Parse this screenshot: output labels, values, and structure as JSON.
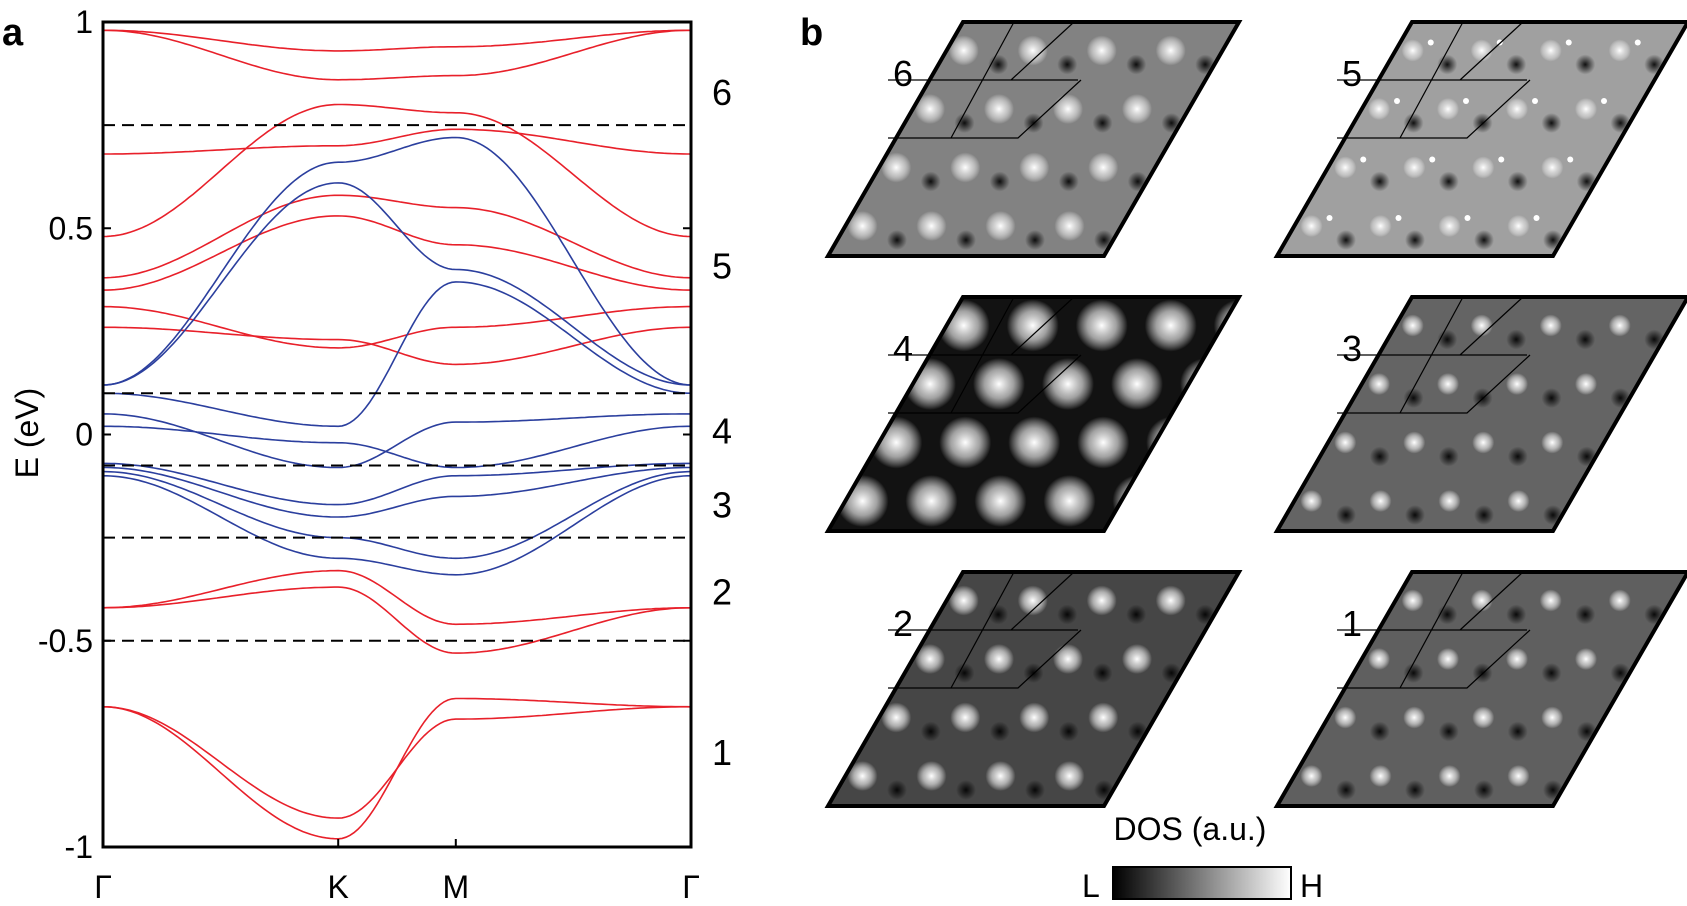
{
  "chart_data": [
    {
      "panel": "a",
      "type": "line",
      "title": "",
      "ylabel": "E (eV)",
      "xlabel": "",
      "ylim": [
        -1,
        1
      ],
      "yticks": [
        {
          "value": 1,
          "label": "1"
        },
        {
          "value": 0.5,
          "label": "0.5"
        },
        {
          "value": 0,
          "label": "0"
        },
        {
          "value": -0.5,
          "label": "-0.5"
        },
        {
          "value": -1,
          "label": "-1"
        }
      ],
      "kpoints": [
        {
          "label": "Γ",
          "k": 0
        },
        {
          "label": "K",
          "k": 0.4
        },
        {
          "label": "M",
          "k": 0.6
        },
        {
          "label": "Γ",
          "k": 1
        }
      ],
      "dashed_levels": [
        0.75,
        0.1,
        -0.075,
        -0.25,
        -0.5
      ],
      "region_labels": [
        {
          "label": "6",
          "energy": 0.83
        },
        {
          "label": "5",
          "energy": 0.41
        },
        {
          "label": "4",
          "energy": 0.01
        },
        {
          "label": "3",
          "energy": -0.17
        },
        {
          "label": "2",
          "energy": -0.38
        },
        {
          "label": "1",
          "energy": -0.77
        }
      ],
      "series_colors": {
        "red": "#e8202a",
        "blue": "#2b3f9e"
      },
      "bands": [
        {
          "color": "red",
          "values": [
            0.98,
            0.93,
            0.94,
            0.98
          ]
        },
        {
          "color": "red",
          "values": [
            0.98,
            0.86,
            0.87,
            0.98
          ]
        },
        {
          "color": "red",
          "values": [
            0.68,
            0.7,
            0.74,
            0.68
          ]
        },
        {
          "color": "red",
          "values": [
            0.48,
            0.8,
            0.78,
            0.48
          ]
        },
        {
          "color": "red",
          "values": [
            0.38,
            0.58,
            0.55,
            0.38
          ]
        },
        {
          "color": "red",
          "values": [
            0.35,
            0.53,
            0.46,
            0.35
          ]
        },
        {
          "color": "red",
          "values": [
            0.31,
            0.21,
            0.26,
            0.31
          ]
        },
        {
          "color": "red",
          "values": [
            0.26,
            0.23,
            0.17,
            0.26
          ]
        },
        {
          "color": "red",
          "values": [
            -0.42,
            -0.37,
            -0.53,
            -0.42
          ]
        },
        {
          "color": "red",
          "values": [
            -0.42,
            -0.33,
            -0.46,
            -0.42
          ]
        },
        {
          "color": "red",
          "values": [
            -0.66,
            -0.93,
            -0.69,
            -0.66
          ]
        },
        {
          "color": "red",
          "values": [
            -0.66,
            -0.98,
            -0.64,
            -0.66
          ]
        },
        {
          "color": "blue",
          "values": [
            0.12,
            0.66,
            0.72,
            0.12
          ]
        },
        {
          "color": "blue",
          "values": [
            0.12,
            0.61,
            0.4,
            0.12
          ]
        },
        {
          "color": "blue",
          "values": [
            0.1,
            0.02,
            0.37,
            0.1
          ]
        },
        {
          "color": "blue",
          "values": [
            0.05,
            -0.08,
            0.03,
            0.05
          ]
        },
        {
          "color": "blue",
          "values": [
            0.02,
            -0.02,
            -0.08,
            0.02
          ]
        },
        {
          "color": "blue",
          "values": [
            -0.07,
            -0.17,
            -0.1,
            -0.07
          ]
        },
        {
          "color": "blue",
          "values": [
            -0.08,
            -0.2,
            -0.15,
            -0.08
          ]
        },
        {
          "color": "blue",
          "values": [
            -0.09,
            -0.25,
            -0.3,
            -0.09
          ]
        },
        {
          "color": "blue",
          "values": [
            -0.1,
            -0.3,
            -0.34,
            -0.1
          ]
        }
      ]
    },
    {
      "panel": "b",
      "type": "heatmap",
      "title": "",
      "colorbar": {
        "label": "DOS (a.u.)",
        "low": "L",
        "high": "H"
      },
      "maps": [
        {
          "label": "6",
          "pattern": "bright and dark spots mixed",
          "background_gray": 130
        },
        {
          "label": "5",
          "pattern": "small bright dots in triangles",
          "background_gray": 160
        },
        {
          "label": "4",
          "pattern": "bright round spots on black",
          "background_gray": 18
        },
        {
          "label": "3",
          "pattern": "bright triangles with single peaks",
          "background_gray": 100
        },
        {
          "label": "2",
          "pattern": "bright spots on dark",
          "background_gray": 70
        },
        {
          "label": "1",
          "pattern": "bright triangles on dark",
          "background_gray": 95
        }
      ]
    }
  ]
}
